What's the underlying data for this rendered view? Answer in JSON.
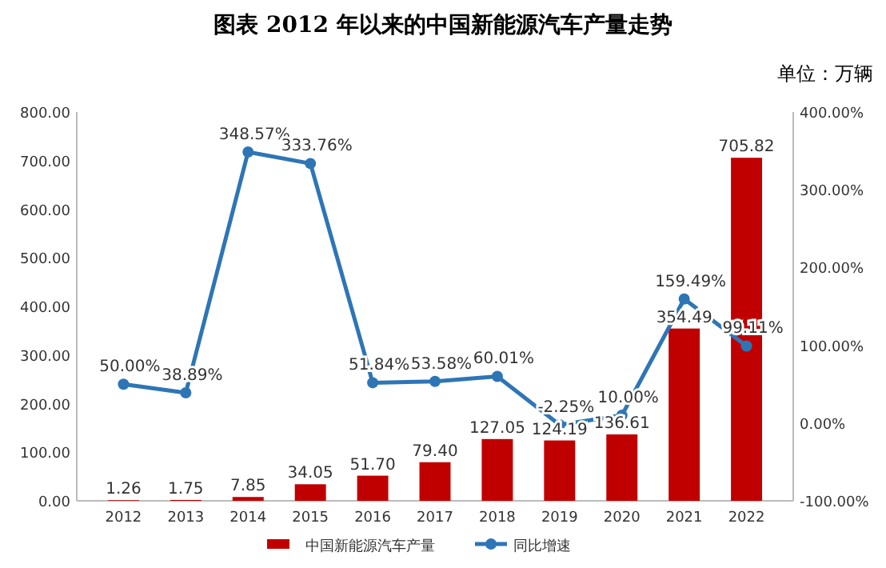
{
  "chart_data": {
    "type": "bar",
    "title": "图表  2012 年以来的中国新能源汽车产量走势",
    "subtitle": "单位：万辆",
    "categories": [
      "2012",
      "2013",
      "2014",
      "2015",
      "2016",
      "2017",
      "2018",
      "2019",
      "2020",
      "2021",
      "2022"
    ],
    "series": [
      {
        "name": "中国新能源汽车产量",
        "color": "#c00000",
        "values": [
          1.26,
          1.75,
          7.85,
          34.05,
          51.7,
          79.4,
          127.05,
          124.19,
          136.61,
          354.49,
          705.82
        ],
        "value_labels": [
          "1.26",
          "1.75",
          "7.85",
          "34.05",
          "51.70",
          "79.40",
          "127.05",
          "124.19",
          "136.61",
          "354.49",
          "705.82"
        ]
      },
      {
        "name": "同比增速",
        "type": "line",
        "axis": "y2",
        "color": "#2e75b6",
        "marker": "circle",
        "values": [
          50,
          38.89,
          348.57,
          333.76,
          51.84,
          53.58,
          60.01,
          -2.25,
          10,
          159.49,
          99.11
        ],
        "value_labels": [
          "50.00%",
          "38.89%",
          "348.57%",
          "333.76%",
          "51.84%",
          "53.58%",
          "60.01%",
          "-2.25%",
          "10.00%",
          "159.49%",
          "99.11%"
        ]
      }
    ],
    "ylim": [
      0,
      800
    ],
    "yticks": [
      {
        "value": 0,
        "label": "0.00"
      },
      {
        "value": 100,
        "label": "100.00"
      },
      {
        "value": 200,
        "label": "200.00"
      },
      {
        "value": 300,
        "label": "300.00"
      },
      {
        "value": 400,
        "label": "400.00"
      },
      {
        "value": 500,
        "label": "500.00"
      },
      {
        "value": 600,
        "label": "600.00"
      },
      {
        "value": 700,
        "label": "700.00"
      },
      {
        "value": 800,
        "label": "800.00"
      }
    ],
    "y2lim": [
      -100,
      400
    ],
    "y2ticks": [
      {
        "value": -100,
        "label": "-100.00%"
      },
      {
        "value": 0,
        "label": "0.00%"
      },
      {
        "value": 100,
        "label": "100.00%"
      },
      {
        "value": 200,
        "label": "200.00%"
      },
      {
        "value": 300,
        "label": "300.00%"
      },
      {
        "value": 400,
        "label": "400.00%"
      }
    ],
    "legend": "bottom",
    "grid": false
  }
}
